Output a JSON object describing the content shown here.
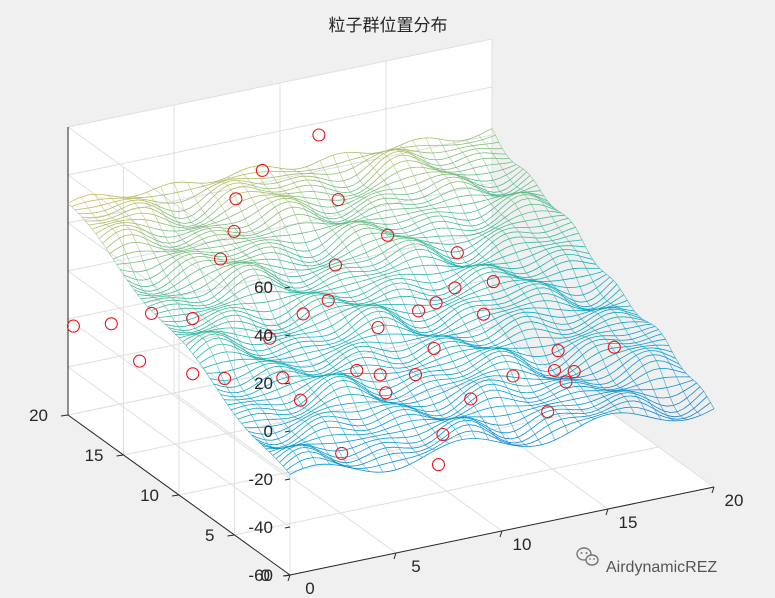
{
  "chart_data": {
    "type": "surface3d",
    "title": "粒子群位置分布",
    "xlabel": "",
    "ylabel": "",
    "zlabel": "",
    "xlim": [
      0,
      20
    ],
    "ylim": [
      0,
      20
    ],
    "zlim": [
      -60,
      60
    ],
    "x_ticks": [
      "0",
      "5",
      "10",
      "15",
      "20"
    ],
    "y_ticks": [
      "0",
      "5",
      "10",
      "15",
      "20"
    ],
    "z_ticks": [
      "-60",
      "-40",
      "-20",
      "0",
      "20",
      "40",
      "60"
    ],
    "grid": true,
    "colormap": "parula",
    "surface": {
      "function": "3 sin(1.6 x) sin(1.6 y) + ridges",
      "style": "mesh"
    },
    "markers": {
      "shape": "circle",
      "color": "#e8141e",
      "points": [
        {
          "x": 11.1,
          "y": 18.6,
          "z": 41
        },
        {
          "x": 7.6,
          "y": 17.0,
          "z": 38
        },
        {
          "x": 6.4,
          "y": 17.1,
          "z": 28
        },
        {
          "x": 10.6,
          "y": 15.9,
          "z": 24
        },
        {
          "x": 5.9,
          "y": 16.3,
          "z": 18
        },
        {
          "x": 5.1,
          "y": 16.0,
          "z": 9
        },
        {
          "x": 12.3,
          "y": 14.7,
          "z": 10
        },
        {
          "x": 10.1,
          "y": 15.2,
          "z": 0
        },
        {
          "x": 14.7,
          "y": 13.0,
          "z": 4
        },
        {
          "x": 6.8,
          "y": 11.8,
          "z": -3
        },
        {
          "x": 3.0,
          "y": 14.5,
          "z": -7
        },
        {
          "x": 2.0,
          "y": 16.3,
          "z": -9
        },
        {
          "x": 1.1,
          "y": 18.2,
          "z": -18
        },
        {
          "x": 12.6,
          "y": 10.9,
          "z": -6
        },
        {
          "x": 11.3,
          "y": 10.0,
          "z": -4
        },
        {
          "x": 13.8,
          "y": 11.5,
          "z": -4
        },
        {
          "x": 15.4,
          "y": 11.1,
          "z": -3
        },
        {
          "x": 4.7,
          "y": 10.8,
          "z": -6
        },
        {
          "x": 9.7,
          "y": 10.6,
          "z": -10
        },
        {
          "x": 3.2,
          "y": 12.0,
          "z": -24
        },
        {
          "x": 8.4,
          "y": 12.6,
          "z": -3
        },
        {
          "x": 14.0,
          "y": 9.3,
          "z": -8
        },
        {
          "x": 11.3,
          "y": 8.6,
          "z": -15
        },
        {
          "x": 7.6,
          "y": 8.5,
          "z": -17
        },
        {
          "x": 0.2,
          "y": 19.9,
          "z": -23
        },
        {
          "x": 1.7,
          "y": 16.8,
          "z": -30
        },
        {
          "x": 5.0,
          "y": 8.6,
          "z": -25
        },
        {
          "x": 8.6,
          "y": 8.3,
          "z": -20
        },
        {
          "x": 9.9,
          "y": 7.6,
          "z": -20
        },
        {
          "x": 8.5,
          "y": 7.6,
          "z": -25
        },
        {
          "x": 13.4,
          "y": 5.5,
          "z": -20
        },
        {
          "x": 11.3,
          "y": 5.3,
          "z": -25
        },
        {
          "x": 15.2,
          "y": 5.2,
          "z": -20
        },
        {
          "x": 14.8,
          "y": 3.4,
          "z": -18
        },
        {
          "x": 16.1,
          "y": 6.6,
          "z": -18
        },
        {
          "x": 17.6,
          "y": 4.4,
          "z": -12
        },
        {
          "x": 15.5,
          "y": 4.0,
          "z": -17
        },
        {
          "x": 3.0,
          "y": 14.5,
          "z": -30
        },
        {
          "x": 6.0,
          "y": 6.8,
          "z": -43
        },
        {
          "x": 6.1,
          "y": 12.3,
          "z": -30
        },
        {
          "x": 13.1,
          "y": 1.8,
          "z": -22
        },
        {
          "x": 10.3,
          "y": 5.9,
          "z": -40
        },
        {
          "x": 9.1,
          "y": 4.0,
          "z": -44
        }
      ]
    }
  },
  "watermark": {
    "icon": "wechat-icon",
    "text": "AirdynamicREZ"
  }
}
